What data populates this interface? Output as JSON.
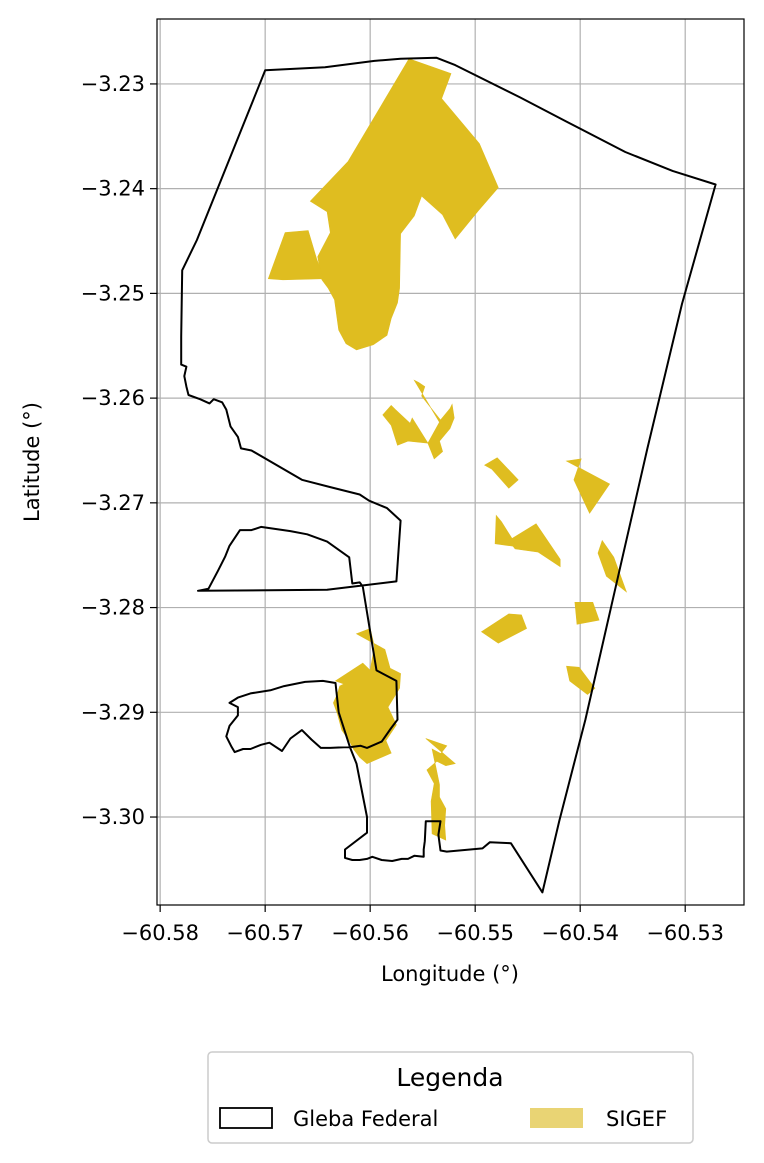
{
  "chart_data": {
    "type": "map",
    "xlabel": "Longitude (°)",
    "ylabel": "Latitude (°)",
    "xlim": [
      -60.5803,
      -60.5244
    ],
    "ylim": [
      -3.3084,
      -3.2238
    ],
    "xticks": [
      -60.58,
      -60.57,
      -60.56,
      -60.55,
      -60.54,
      -60.53
    ],
    "yticks": [
      -3.23,
      -3.24,
      -3.25,
      -3.26,
      -3.27,
      -3.28,
      -3.29,
      -3.3
    ],
    "xtick_labels": [
      "−60.58",
      "−60.57",
      "−60.56",
      "−60.55",
      "−60.54",
      "−60.53"
    ],
    "ytick_labels": [
      "−3.23",
      "−3.24",
      "−3.25",
      "−3.26",
      "−3.27",
      "−3.28",
      "−3.29",
      "−3.30"
    ],
    "grid": true,
    "legend": {
      "title": "Legenda",
      "placement": "bottom-center",
      "entries": [
        {
          "label": "Gleba Federal",
          "style": "outline"
        },
        {
          "label": "SIGEF",
          "style": "fill"
        }
      ]
    },
    "colors": {
      "gleba_stroke": "#000000",
      "sigef_fill": "#DFBD20",
      "sigef_legend_fill": "#E9D474",
      "grid": "#b0b0b0"
    },
    "gleba_federal": [
      [
        -60.5537,
        -3.2275
      ],
      [
        -60.5519,
        -3.2282
      ],
      [
        -60.5457,
        -3.2313
      ],
      [
        -60.5413,
        -3.2336
      ],
      [
        -60.5357,
        -3.2365
      ],
      [
        -60.5312,
        -3.2383
      ],
      [
        -60.5271,
        -3.2396
      ],
      [
        -60.5303,
        -3.251
      ],
      [
        -60.5336,
        -3.2648
      ],
      [
        -60.5367,
        -3.2784
      ],
      [
        -60.5395,
        -3.2907
      ],
      [
        -60.542,
        -3.3004
      ],
      [
        -60.5436,
        -3.3072
      ],
      [
        -60.5466,
        -3.3025
      ],
      [
        -60.5486,
        -3.3024
      ],
      [
        -60.5493,
        -3.303
      ],
      [
        -60.5527,
        -3.3033
      ],
      [
        -60.5533,
        -3.3032
      ],
      [
        -60.5535,
        -3.3017
      ],
      [
        -60.5533,
        -3.3004
      ],
      [
        -60.5547,
        -3.3004
      ],
      [
        -60.5548,
        -3.3023
      ],
      [
        -60.5549,
        -3.3031
      ],
      [
        -60.5549,
        -3.3038
      ],
      [
        -60.5558,
        -3.3037
      ],
      [
        -60.5564,
        -3.304
      ],
      [
        -60.557,
        -3.304
      ],
      [
        -60.5579,
        -3.3042
      ],
      [
        -60.5589,
        -3.3041
      ],
      [
        -60.5598,
        -3.3038
      ],
      [
        -60.5603,
        -3.304
      ],
      [
        -60.561,
        -3.3041
      ],
      [
        -60.5617,
        -3.3041
      ],
      [
        -60.5624,
        -3.3039
      ],
      [
        -60.5624,
        -3.3031
      ],
      [
        -60.5603,
        -3.3015
      ],
      [
        -60.5603,
        -3.3
      ],
      [
        -60.5613,
        -3.2949
      ],
      [
        -60.5619,
        -3.2934
      ],
      [
        -60.563,
        -3.29
      ],
      [
        -60.5633,
        -3.2872
      ],
      [
        -60.5645,
        -3.287
      ],
      [
        -60.5662,
        -3.2871
      ],
      [
        -60.5682,
        -3.2875
      ],
      [
        -60.5695,
        -3.2879
      ],
      [
        -60.5714,
        -3.2882
      ],
      [
        -60.5726,
        -3.2886
      ],
      [
        -60.5734,
        -3.2891
      ],
      [
        -60.5726,
        -3.2895
      ],
      [
        -60.5726,
        -3.2903
      ],
      [
        -60.5734,
        -3.2913
      ],
      [
        -60.5737,
        -3.2923
      ],
      [
        -60.5732,
        -3.2933
      ],
      [
        -60.5729,
        -3.2938
      ],
      [
        -60.5721,
        -3.2935
      ],
      [
        -60.5714,
        -3.2935
      ],
      [
        -60.5704,
        -3.2931
      ],
      [
        -60.5696,
        -3.2929
      ],
      [
        -60.5684,
        -3.2937
      ],
      [
        -60.5676,
        -3.2925
      ],
      [
        -60.5665,
        -3.2917
      ],
      [
        -60.5656,
        -3.2926
      ],
      [
        -60.5647,
        -3.2934
      ],
      [
        -60.5638,
        -3.2934
      ],
      [
        -60.5617,
        -3.2933
      ],
      [
        -60.5609,
        -3.2932
      ],
      [
        -60.5603,
        -3.2934
      ],
      [
        -60.5589,
        -3.2928
      ],
      [
        -60.558,
        -3.2915
      ],
      [
        -60.5574,
        -3.2907
      ],
      [
        -60.5575,
        -3.287
      ],
      [
        -60.5594,
        -3.286
      ],
      [
        -60.5607,
        -3.278
      ],
      [
        -60.561,
        -3.2776
      ],
      [
        -60.5617,
        -3.2777
      ],
      [
        -60.562,
        -3.2752
      ],
      [
        -60.5641,
        -3.2737
      ],
      [
        -60.566,
        -3.273
      ],
      [
        -60.5676,
        -3.2727
      ],
      [
        -60.5704,
        -3.2723
      ],
      [
        -60.5713,
        -3.2726
      ],
      [
        -60.5724,
        -3.2726
      ],
      [
        -60.5734,
        -3.2741
      ],
      [
        -60.5738,
        -3.2751
      ],
      [
        -60.5745,
        -3.2765
      ],
      [
        -60.5754,
        -3.2782
      ],
      [
        -60.5764,
        -3.2784
      ],
      [
        -60.5764,
        -3.2784
      ],
      [
        -60.5641,
        -3.2783
      ],
      [
        -60.5575,
        -3.2775
      ],
      [
        -60.5571,
        -3.2717
      ],
      [
        -60.5584,
        -3.2705
      ],
      [
        -60.5601,
        -3.2698
      ],
      [
        -60.561,
        -3.2692
      ],
      [
        -60.5638,
        -3.2685
      ],
      [
        -60.5665,
        -3.2678
      ],
      [
        -60.5713,
        -3.265
      ],
      [
        -60.5723,
        -3.2648
      ],
      [
        -60.5726,
        -3.2637
      ],
      [
        -60.5733,
        -3.2627
      ],
      [
        -60.5737,
        -3.2611
      ],
      [
        -60.5741,
        -3.2604
      ],
      [
        -60.5749,
        -3.2601
      ],
      [
        -60.5753,
        -3.2605
      ],
      [
        -60.5762,
        -3.2601
      ],
      [
        -60.5773,
        -3.2597
      ],
      [
        -60.5775,
        -3.2589
      ],
      [
        -60.5777,
        -3.2579
      ],
      [
        -60.5775,
        -3.257
      ],
      [
        -60.578,
        -3.2568
      ],
      [
        -60.578,
        -3.2541
      ],
      [
        -60.5779,
        -3.2478
      ],
      [
        -60.5765,
        -3.2449
      ],
      [
        -60.57,
        -3.2287
      ],
      [
        -60.5643,
        -3.2284
      ],
      [
        -60.5596,
        -3.2278
      ],
      [
        -60.5571,
        -3.2276
      ]
    ],
    "sigef_parcels": [
      [
        [
          -60.5563,
          -3.2276
        ],
        [
          -60.5523,
          -3.229
        ],
        [
          -60.5532,
          -3.2314
        ],
        [
          -60.5496,
          -3.2357
        ],
        [
          -60.5478,
          -3.2399
        ],
        [
          -60.5497,
          -3.2421
        ],
        [
          -60.5519,
          -3.2448
        ],
        [
          -60.5531,
          -3.2425
        ],
        [
          -60.5551,
          -3.2407
        ],
        [
          -60.5558,
          -3.2426
        ],
        [
          -60.5571,
          -3.2443
        ],
        [
          -60.5572,
          -3.2495
        ],
        [
          -60.5574,
          -3.2509
        ],
        [
          -60.558,
          -3.2524
        ],
        [
          -60.5584,
          -3.254
        ],
        [
          -60.5597,
          -3.2549
        ],
        [
          -60.5613,
          -3.2554
        ],
        [
          -60.5623,
          -3.2548
        ],
        [
          -60.563,
          -3.2535
        ],
        [
          -60.5634,
          -3.2506
        ],
        [
          -60.564,
          -3.2495
        ],
        [
          -60.5646,
          -3.2487
        ],
        [
          -60.565,
          -3.2465
        ],
        [
          -60.5638,
          -3.2442
        ],
        [
          -60.5641,
          -3.2422
        ],
        [
          -60.5657,
          -3.2412
        ],
        [
          -60.5621,
          -3.2374
        ]
      ],
      [
        [
          -60.5681,
          -3.2442
        ],
        [
          -60.5659,
          -3.244
        ],
        [
          -60.5651,
          -3.2467
        ],
        [
          -60.5644,
          -3.2486
        ],
        [
          -60.5683,
          -3.2487
        ],
        [
          -60.5697,
          -3.2486
        ]
      ],
      [
        [
          -60.558,
          -3.2607
        ],
        [
          -60.5576,
          -3.2611
        ],
        [
          -60.5562,
          -3.2624
        ],
        [
          -60.556,
          -3.2619
        ],
        [
          -60.5545,
          -3.2643
        ],
        [
          -60.5564,
          -3.2641
        ],
        [
          -60.5574,
          -3.2645
        ],
        [
          -60.558,
          -3.2626
        ],
        [
          -60.5588,
          -3.2616
        ]
      ],
      [
        [
          -60.5558,
          -3.2583
        ],
        [
          -60.5554,
          -3.2585
        ],
        [
          -60.5548,
          -3.2589
        ],
        [
          -60.5551,
          -3.2598
        ],
        [
          -60.5533,
          -3.2621
        ],
        [
          -60.5524,
          -3.261
        ],
        [
          -60.5522,
          -3.2606
        ],
        [
          -60.552,
          -3.2619
        ],
        [
          -60.5524,
          -3.2629
        ],
        [
          -60.5534,
          -3.2641
        ],
        [
          -60.5531,
          -3.2651
        ],
        [
          -60.5539,
          -3.2658
        ],
        [
          -60.5545,
          -3.2643
        ],
        [
          -60.5534,
          -3.2623
        ]
      ],
      [
        [
          -60.5491,
          -3.2664
        ],
        [
          -60.5479,
          -3.2657
        ],
        [
          -60.5459,
          -3.2678
        ],
        [
          -60.5468,
          -3.2686
        ],
        [
          -60.5484,
          -3.2668
        ]
      ],
      [
        [
          -60.5413,
          -3.266
        ],
        [
          -60.5399,
          -3.2658
        ],
        [
          -60.5406,
          -3.2678
        ],
        [
          -60.5391,
          -3.271
        ],
        [
          -60.5372,
          -3.2682
        ]
      ],
      [
        [
          -60.5468,
          -3.2736
        ],
        [
          -60.5442,
          -3.272
        ],
        [
          -60.5419,
          -3.2754
        ],
        [
          -60.5419,
          -3.2761
        ],
        [
          -60.544,
          -3.2747
        ],
        [
          -60.5462,
          -3.2744
        ]
      ],
      [
        [
          -60.548,
          -3.2712
        ],
        [
          -60.5475,
          -3.2718
        ],
        [
          -60.546,
          -3.2742
        ],
        [
          -60.5481,
          -3.2739
        ]
      ],
      [
        [
          -60.5456,
          -3.2807
        ],
        [
          -60.5451,
          -3.282
        ],
        [
          -60.5478,
          -3.2834
        ],
        [
          -60.5494,
          -3.2823
        ],
        [
          -60.5468,
          -3.2806
        ]
      ],
      [
        [
          -60.5405,
          -3.2795
        ],
        [
          -60.5388,
          -3.2795
        ],
        [
          -60.5382,
          -3.2812
        ],
        [
          -60.5403,
          -3.2816
        ]
      ],
      [
        [
          -60.5379,
          -3.2736
        ],
        [
          -60.5368,
          -3.2752
        ],
        [
          -60.5356,
          -3.2785
        ],
        [
          -60.5375,
          -3.277
        ],
        [
          -60.5383,
          -3.2748
        ]
      ],
      [
        [
          -60.5413,
          -3.2856
        ],
        [
          -60.5401,
          -3.2857
        ],
        [
          -60.5386,
          -3.2877
        ],
        [
          -60.5393,
          -3.2883
        ],
        [
          -60.541,
          -3.287
        ]
      ],
      [
        [
          -60.56,
          -3.282
        ],
        [
          -60.5613,
          -3.2825
        ],
        [
          -60.5586,
          -3.284
        ],
        [
          -60.5581,
          -3.2858
        ],
        [
          -60.5571,
          -3.2863
        ],
        [
          -60.5572,
          -3.2877
        ],
        [
          -60.5583,
          -3.2895
        ],
        [
          -60.5575,
          -3.2912
        ],
        [
          -60.5585,
          -3.2927
        ],
        [
          -60.558,
          -3.2939
        ],
        [
          -60.5603,
          -3.2949
        ],
        [
          -60.561,
          -3.2943
        ],
        [
          -60.5616,
          -3.2935
        ],
        [
          -60.562,
          -3.2927
        ],
        [
          -60.5627,
          -3.2917
        ],
        [
          -60.5631,
          -3.2902
        ],
        [
          -60.5635,
          -3.2891
        ],
        [
          -60.5631,
          -3.2882
        ],
        [
          -60.5629,
          -3.2875
        ],
        [
          -60.5625,
          -3.2873
        ],
        [
          -60.5633,
          -3.287
        ],
        [
          -60.5607,
          -3.2853
        ],
        [
          -60.56,
          -3.286
        ],
        [
          -60.5596,
          -3.2837
        ]
      ],
      [
        [
          -60.5547,
          -3.2925
        ],
        [
          -60.5527,
          -3.2932
        ],
        [
          -60.5538,
          -3.2946
        ],
        [
          -60.5528,
          -3.2951
        ],
        [
          -60.5519,
          -3.2949
        ]
      ],
      [
        [
          -60.5541,
          -3.2935
        ],
        [
          -60.553,
          -3.2941
        ],
        [
          -60.5539,
          -3.2949
        ],
        [
          -60.5546,
          -3.2955
        ],
        [
          -60.5539,
          -3.2968
        ],
        [
          -60.5542,
          -3.2985
        ],
        [
          -60.5541,
          -3.3016
        ],
        [
          -60.5528,
          -3.3022
        ],
        [
          -60.5529,
          -3.3008
        ],
        [
          -60.5528,
          -3.2992
        ],
        [
          -60.5534,
          -3.2981
        ],
        [
          -60.5534,
          -3.2969
        ]
      ]
    ]
  }
}
